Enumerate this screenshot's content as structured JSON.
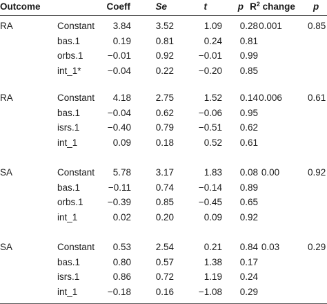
{
  "header": {
    "outcome": "Outcome",
    "coeff": "Coeff",
    "se": "Se",
    "t": "t",
    "p": "p",
    "r2_base": "R",
    "r2_sup": "2",
    "r2_rest": " change",
    "p2": "p"
  },
  "groups": [
    {
      "outcome": "RA",
      "r2_change": "0.001",
      "p": "0.85",
      "rows": [
        {
          "term": "Constant",
          "coeff": "3.84",
          "se": "3.52",
          "t": "1.09",
          "p": "0.28"
        },
        {
          "term": "bas.1",
          "coeff": "0.19",
          "se": "0.81",
          "t": "0.24",
          "p": "0.81"
        },
        {
          "term": "orbs.1",
          "coeff": "−0.01",
          "se": "0.92",
          "t": "−0.01",
          "p": "0.99"
        },
        {
          "term": "int_1*",
          "coeff": "−0.04",
          "se": "0.22",
          "t": "−0.20",
          "p": "0.85"
        }
      ]
    },
    {
      "outcome": "RA",
      "r2_change": "0.006",
      "p": "0.61",
      "rows": [
        {
          "term": "Constant",
          "coeff": "4.18",
          "se": "2.75",
          "t": "1.52",
          "p": "0.14"
        },
        {
          "term": "bas.1",
          "coeff": "−0.04",
          "se": "0.62",
          "t": "−0.06",
          "p": "0.95"
        },
        {
          "term": "isrs.1",
          "coeff": "−0.40",
          "se": "0.79",
          "t": "−0.51",
          "p": "0.62"
        },
        {
          "term": "int_1",
          "coeff": "0.09",
          "se": "0.18",
          "t": "0.52",
          "p": "0.61"
        }
      ]
    },
    {
      "outcome": "SA",
      "r2_change": "0.00",
      "p": "0.92",
      "rows": [
        {
          "term": "Constant",
          "coeff": "5.78",
          "se": "3.17",
          "t": "1.83",
          "p": "0.08"
        },
        {
          "term": "bas.1",
          "coeff": "−0.11",
          "se": "0.74",
          "t": "−0.14",
          "p": "0.89"
        },
        {
          "term": "orbs.1",
          "coeff": "−0.39",
          "se": "0.85",
          "t": "−0.45",
          "p": "0.65"
        },
        {
          "term": "int_1",
          "coeff": "0.02",
          "se": "0.20",
          "t": "0.09",
          "p": "0.92"
        }
      ]
    },
    {
      "outcome": "SA",
      "r2_change": "0.03",
      "p": "0.29",
      "rows": [
        {
          "term": "Constant",
          "coeff": "0.53",
          "se": "2.54",
          "t": "0.21",
          "p": "0.84"
        },
        {
          "term": "bas.1",
          "coeff": "0.80",
          "se": "0.57",
          "t": "1.38",
          "p": "0.17"
        },
        {
          "term": "isrs.1",
          "coeff": "0.86",
          "se": "0.72",
          "t": "1.19",
          "p": "0.24"
        },
        {
          "term": "int_1",
          "coeff": "−0.18",
          "se": "0.16",
          "t": "−1.08",
          "p": "0.29"
        }
      ]
    }
  ]
}
